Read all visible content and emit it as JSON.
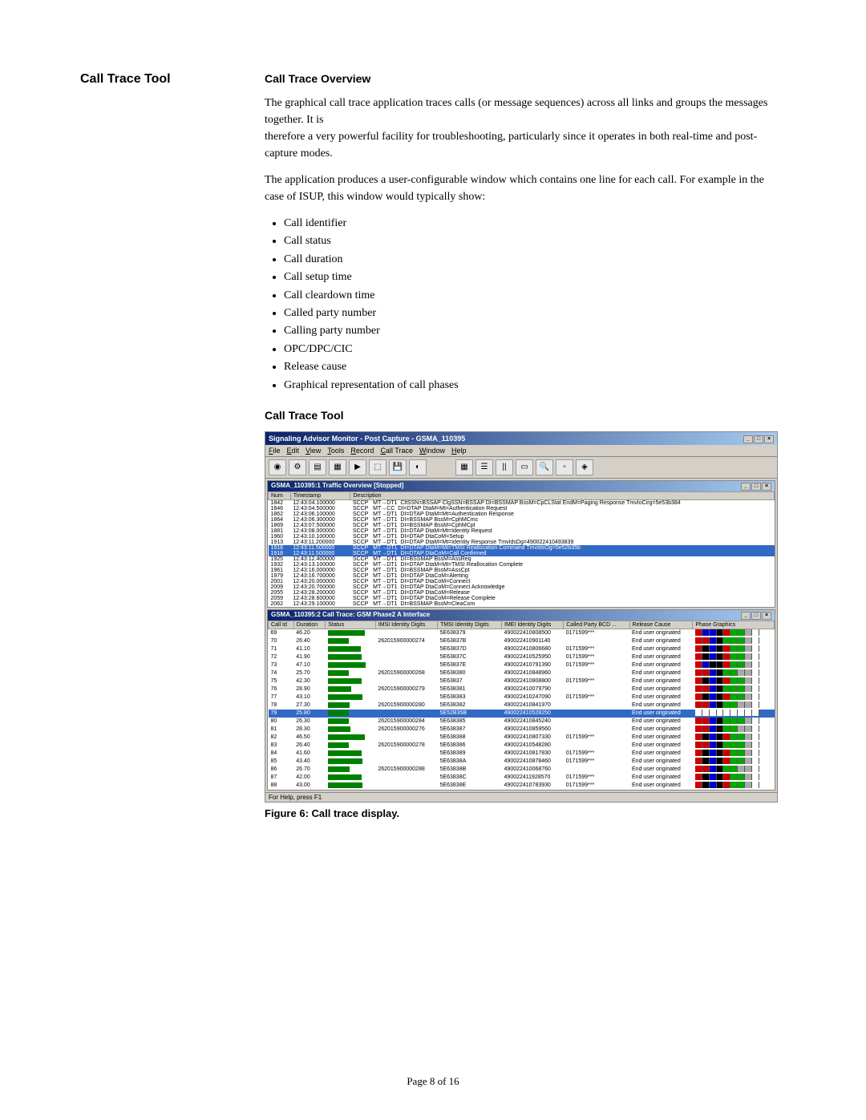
{
  "left": {
    "title": "Call Trace Tool"
  },
  "overview": {
    "title": "Call Trace Overview",
    "para1": "The graphical call trace application traces calls (or message sequences) across all links and groups the messages together. It is",
    "para1b": "therefore a very powerful facility for troubleshooting, particularly since it operates in both real-time and post-capture modes.",
    "para2": "The application produces a user-configurable window which contains one line for each call. For example in the case of ISUP, this window would typically show:",
    "bullets": [
      "Call identifier",
      "Call status",
      "Call duration",
      "Call setup time",
      "Call cleardown time",
      "Called party number",
      "Calling party number",
      "OPC/DPC/CIC",
      "Release cause",
      "Graphical representation of call phases"
    ]
  },
  "tool": {
    "title": "Call Trace Tool"
  },
  "win": {
    "title": "Signaling Advisor Monitor - Post Capture - GSMA_110395",
    "menus": [
      "File",
      "Edit",
      "View",
      "Tools",
      "Record",
      "Call Trace",
      "Window",
      "Help"
    ],
    "status": "For Help, press F1"
  },
  "pane1": {
    "title": "GSMA_110395:1 Traffic Overview [Stopped]",
    "cols": [
      "Num",
      "Timestamp",
      "Description"
    ],
    "rows": [
      {
        "n": "1842",
        "t": "12:43:04.100000",
        "p": "SCCP",
        "if": "MT→DT1",
        "d": "CltSSN=BSSAP  ClgSSN=BSSAP        DI=BSSMAP BssM=CpCLStat EndM=Paging Response TmvIoCirg=5e53b384"
      },
      {
        "n": "1846",
        "t": "12:43:04.500000",
        "p": "SCCP",
        "if": "MT→CC",
        "d": "DI=DTAP DtaM=Mt=Authentication Request"
      },
      {
        "n": "1862",
        "t": "12:43:06.100000",
        "p": "SCCP",
        "if": "MT→DT1",
        "d": "DI=DTAP DtaM=Mt=Authentication Response"
      },
      {
        "n": "1864",
        "t": "12:43:06.300000",
        "p": "SCCP",
        "if": "MT→DT1",
        "d": "DI=BSSMAP BssM=CphMCmc"
      },
      {
        "n": "1869",
        "t": "12:43:07.500000",
        "p": "SCCP",
        "if": "MT→DT1",
        "d": "DI=BSSMAP BssM=CphMCpt"
      },
      {
        "n": "1881",
        "t": "12:43:08.000000",
        "p": "SCCP",
        "if": "MT→DT1",
        "d": "DI=DTAP DtaM=Mt=Identity Request"
      },
      {
        "n": "1960",
        "t": "12:43:10.100000",
        "p": "SCCP",
        "if": "MT→DT1",
        "d": "DI=DTAP DtaCoM=Setup"
      },
      {
        "n": "1913",
        "t": "12:43:11.200000",
        "p": "SCCP",
        "if": "MT→DT1",
        "d": "DI=DTAP DtaM=Mt=Identity Response TmvIdsDg=490022410493839"
      },
      {
        "n": "1916",
        "t": "12:43:11.500000",
        "p": "SCCP",
        "if": "MT→DT1",
        "d": "DI=DTAP DtaM=Mt=TMSI Reallocation Command TmvIdsOg=5e52b35b",
        "hl": true
      },
      {
        "n": "1918",
        "t": "12:43:11.500000",
        "p": "SCCP",
        "if": "MT→DT1",
        "d": "DI=DTAP DtaCoM=Call Confirmed",
        "hl": true
      },
      {
        "n": "1925",
        "t": "12:43:12.400000",
        "p": "SCCP",
        "if": "MT→DT1",
        "d": "DI=BSSMAP BssM=AssReq"
      },
      {
        "n": "1932",
        "t": "12:43:13.100000",
        "p": "SCCP",
        "if": "MT→DT1",
        "d": "DI=DTAP DtaM=Mt=TMSI Reallocation Complete"
      },
      {
        "n": "1961",
        "t": "12:43:16.000000",
        "p": "SCCP",
        "if": "MT→DT1",
        "d": "DI=BSSMAP BssM=AssCpt"
      },
      {
        "n": "1979",
        "t": "12:43:16.700000",
        "p": "SCCP",
        "if": "MT→DT1",
        "d": "DI=DTAP DtaCoM=Alerting"
      },
      {
        "n": "2001",
        "t": "12:43:20.000000",
        "p": "SCCP",
        "if": "MT→DT1",
        "d": "DI=DTAP DtaCoM=Connect"
      },
      {
        "n": "2009",
        "t": "12:43:20.700000",
        "p": "SCCP",
        "if": "MT→DT1",
        "d": "DI=DTAP DtaCoM=Connect Acknowledge"
      },
      {
        "n": "2055",
        "t": "12:43:28.200000",
        "p": "SCCP",
        "if": "MT→DT1",
        "d": "DI=DTAP DtaCoM=Release"
      },
      {
        "n": "2059",
        "t": "12:43:28.600000",
        "p": "SCCP",
        "if": "MT→DT1",
        "d": "DI=DTAP DtaCoM=Release Complete"
      },
      {
        "n": "2062",
        "t": "12:43:29.100000",
        "p": "SCCP",
        "if": "MT→DT1",
        "d": "DI=BSSMAP BssM=CleaCom"
      }
    ]
  },
  "pane2": {
    "title": "GSMA_110395:2 Call Trace: GSM Phase2 A Interface",
    "cols": [
      "Call Id",
      "Duration",
      "Status",
      "IMSI Identity Digits",
      "TMSI Identity Digits",
      "IMEI Identity Digits",
      "Called Party BCD ...",
      "Release Cause",
      "Phase Graphics"
    ],
    "rows": [
      {
        "id": "69",
        "dur": "46.20",
        "bar": 46,
        "imsi": "",
        "tmsi": "5E638379",
        "imei": "490022410808500",
        "cp": "0171599***",
        "rc": "End user originated",
        "phase": [
          "#c00",
          "#00c",
          "#00c",
          "#000",
          "#c00",
          "#0a0",
          "#0a0",
          "#aaa",
          "#fff"
        ]
      },
      {
        "id": "70",
        "dur": "26.40",
        "bar": 26,
        "imsi": "262015900000274",
        "tmsi": "5E63837B",
        "imei": "490022410901140",
        "cp": "",
        "rc": "End user originated",
        "phase": [
          "#c00",
          "#c00",
          "#00c",
          "#000",
          "#0a0",
          "#0a0",
          "#0a0",
          "#aaa",
          "#fff"
        ]
      },
      {
        "id": "71",
        "dur": "41.10",
        "bar": 41,
        "imsi": "",
        "tmsi": "5E63837D",
        "imei": "490022410806680",
        "cp": "0171599***",
        "rc": "End user originated",
        "phase": [
          "#c00",
          "#000",
          "#00c",
          "#000",
          "#c00",
          "#0a0",
          "#0a0",
          "#aaa",
          "#fff"
        ]
      },
      {
        "id": "72",
        "dur": "41.90",
        "bar": 42,
        "imsi": "",
        "tmsi": "5E63837C",
        "imei": "490022410525950",
        "cp": "0171599***",
        "rc": "End user originated",
        "phase": [
          "#c00",
          "#000",
          "#00c",
          "#000",
          "#c00",
          "#0a0",
          "#0a0",
          "#aaa",
          "#fff"
        ]
      },
      {
        "id": "73",
        "dur": "47.10",
        "bar": 47,
        "imsi": "",
        "tmsi": "5E63837E",
        "imei": "490022410791390",
        "cp": "0171599***",
        "rc": "End user originated",
        "phase": [
          "#c00",
          "#00c",
          "#000",
          "#000",
          "#c00",
          "#0a0",
          "#0a0",
          "#aaa",
          "#fff"
        ]
      },
      {
        "id": "74",
        "dur": "25.70",
        "bar": 26,
        "imsi": "262015900000268",
        "tmsi": "5E638380",
        "imei": "490022410848960",
        "cp": "",
        "rc": "End user originated",
        "phase": [
          "#c00",
          "#c00",
          "#00c",
          "#000",
          "#0a0",
          "#0a0",
          "#aaa",
          "#aaa",
          "#fff"
        ]
      },
      {
        "id": "75",
        "dur": "42.30",
        "bar": 42,
        "imsi": "",
        "tmsi": "5E63837",
        "imei": "490022410808800",
        "cp": "0171599***",
        "rc": "End user originated",
        "phase": [
          "#c00",
          "#000",
          "#00c",
          "#000",
          "#c00",
          "#0a0",
          "#0a0",
          "#aaa",
          "#fff"
        ]
      },
      {
        "id": "76",
        "dur": "28.90",
        "bar": 29,
        "imsi": "262015900000279",
        "tmsi": "5E638381",
        "imei": "490022410079790",
        "cp": "",
        "rc": "End user originated",
        "phase": [
          "#c00",
          "#c00",
          "#00c",
          "#000",
          "#0a0",
          "#0a0",
          "#0a0",
          "#aaa",
          "#fff"
        ]
      },
      {
        "id": "77",
        "dur": "43.10",
        "bar": 43,
        "imsi": "",
        "tmsi": "5E638383",
        "imei": "490022410247090",
        "cp": "0171599***",
        "rc": "End user originated",
        "phase": [
          "#c00",
          "#000",
          "#00c",
          "#000",
          "#c00",
          "#0a0",
          "#0a0",
          "#aaa",
          "#fff"
        ]
      },
      {
        "id": "78",
        "dur": "27.30",
        "bar": 27,
        "imsi": "262015900000280",
        "tmsi": "5E638382",
        "imei": "490022410841970",
        "cp": "",
        "rc": "End user originated",
        "phase": [
          "#c00",
          "#c00",
          "#00c",
          "#000",
          "#0a0",
          "#0a0",
          "#aaa",
          "#aaa",
          "#fff"
        ]
      },
      {
        "id": "79",
        "dur": "25.80",
        "bar": 26,
        "imsi": "",
        "tmsi": "5E52B35B",
        "imei": "490022410528250",
        "cp": "",
        "rc": "End user originated",
        "hl": true,
        "phase": [
          "#fff",
          "#fff",
          "#fff",
          "#fff",
          "#fff",
          "#fff",
          "#fff",
          "#fff",
          "#fff"
        ]
      },
      {
        "id": "80",
        "dur": "26.30",
        "bar": 26,
        "imsi": "262015900000284",
        "tmsi": "5E638385",
        "imei": "490022410845240",
        "cp": "",
        "rc": "End user originated",
        "phase": [
          "#c00",
          "#c00",
          "#00c",
          "#000",
          "#0a0",
          "#0a0",
          "#0a0",
          "#aaa",
          "#fff"
        ]
      },
      {
        "id": "81",
        "dur": "28.30",
        "bar": 28,
        "imsi": "262015900000276",
        "tmsi": "5E638387",
        "imei": "490022410859560",
        "cp": "",
        "rc": "End user originated",
        "phase": [
          "#c00",
          "#c00",
          "#00c",
          "#000",
          "#0a0",
          "#0a0",
          "#aaa",
          "#aaa",
          "#fff"
        ]
      },
      {
        "id": "82",
        "dur": "46.50",
        "bar": 46,
        "imsi": "",
        "tmsi": "5E638388",
        "imei": "490022410807330",
        "cp": "0171599***",
        "rc": "End user originated",
        "phase": [
          "#c00",
          "#000",
          "#00c",
          "#000",
          "#c00",
          "#0a0",
          "#0a0",
          "#aaa",
          "#fff"
        ]
      },
      {
        "id": "83",
        "dur": "26.40",
        "bar": 26,
        "imsi": "262015900000278",
        "tmsi": "5E638386",
        "imei": "490022410548280",
        "cp": "",
        "rc": "End user originated",
        "phase": [
          "#c00",
          "#c00",
          "#00c",
          "#000",
          "#0a0",
          "#0a0",
          "#0a0",
          "#aaa",
          "#fff"
        ]
      },
      {
        "id": "84",
        "dur": "41.60",
        "bar": 42,
        "imsi": "",
        "tmsi": "5E638389",
        "imei": "490022410817830",
        "cp": "0171599***",
        "rc": "End user originated",
        "phase": [
          "#c00",
          "#000",
          "#00c",
          "#000",
          "#c00",
          "#0a0",
          "#0a0",
          "#aaa",
          "#fff"
        ]
      },
      {
        "id": "85",
        "dur": "43.40",
        "bar": 43,
        "imsi": "",
        "tmsi": "5E63838A",
        "imei": "490022410878460",
        "cp": "0171599***",
        "rc": "End user originated",
        "phase": [
          "#c00",
          "#000",
          "#00c",
          "#000",
          "#c00",
          "#0a0",
          "#0a0",
          "#aaa",
          "#fff"
        ]
      },
      {
        "id": "86",
        "dur": "26.70",
        "bar": 27,
        "imsi": "262015900000288",
        "tmsi": "5E63838B",
        "imei": "490022410068760",
        "cp": "",
        "rc": "End user originated",
        "phase": [
          "#c00",
          "#c00",
          "#00c",
          "#000",
          "#0a0",
          "#0a0",
          "#aaa",
          "#aaa",
          "#fff"
        ]
      },
      {
        "id": "87",
        "dur": "42.00",
        "bar": 42,
        "imsi": "",
        "tmsi": "5E63838C",
        "imei": "490022411928570",
        "cp": "0171599***",
        "rc": "End user originated",
        "phase": [
          "#c00",
          "#000",
          "#00c",
          "#000",
          "#c00",
          "#0a0",
          "#0a0",
          "#aaa",
          "#fff"
        ]
      },
      {
        "id": "88",
        "dur": "43.00",
        "bar": 43,
        "imsi": "",
        "tmsi": "5E63838E",
        "imei": "490022410783930",
        "cp": "0171599***",
        "rc": "End user originated",
        "phase": [
          "#c00",
          "#000",
          "#00c",
          "#000",
          "#c00",
          "#0a0",
          "#0a0",
          "#aaa",
          "#fff"
        ]
      }
    ]
  },
  "caption": "Figure 6: Call trace display.",
  "page": "Page 8 of 16"
}
